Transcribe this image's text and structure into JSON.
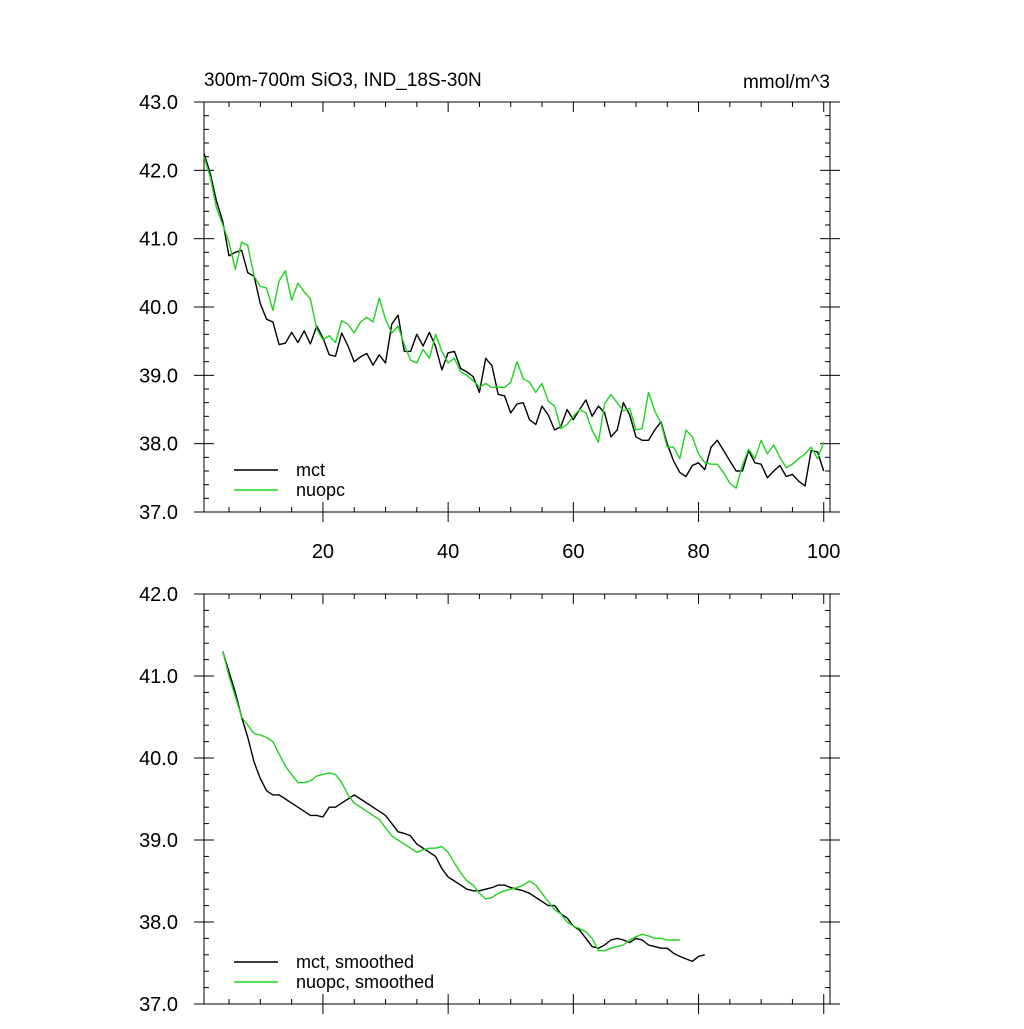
{
  "chart_data": [
    {
      "type": "line",
      "title": "300m-700m SiO3, IND_18S-30N",
      "units": "mmol/m^3",
      "xlabel": "",
      "ylabel": "",
      "xlim": [
        1,
        101
      ],
      "ylim": [
        37.0,
        43.0
      ],
      "x_ticks": [
        20,
        40,
        60,
        80,
        100
      ],
      "x_tick_labels": [
        "20",
        "40",
        "60",
        "80",
        "100"
      ],
      "y_ticks": [
        37.0,
        38.0,
        39.0,
        40.0,
        41.0,
        42.0,
        43.0
      ],
      "y_tick_labels": [
        "37.0",
        "38.0",
        "39.0",
        "40.0",
        "41.0",
        "42.0",
        "43.0"
      ],
      "legend_position": "bottom-left",
      "series": [
        {
          "name": "mct",
          "color": "#000000",
          "x_start": 1,
          "values": [
            42.25,
            41.95,
            41.55,
            41.25,
            40.75,
            40.8,
            40.83,
            40.5,
            40.45,
            40.05,
            39.82,
            39.78,
            39.45,
            39.47,
            39.63,
            39.48,
            39.65,
            39.46,
            39.72,
            39.55,
            39.3,
            39.28,
            39.62,
            39.43,
            39.2,
            39.27,
            39.32,
            39.15,
            39.3,
            39.18,
            39.75,
            39.88,
            39.35,
            39.35,
            39.6,
            39.43,
            39.63,
            39.42,
            39.08,
            39.33,
            39.35,
            39.1,
            39.05,
            38.98,
            38.75,
            39.25,
            39.14,
            38.72,
            38.7,
            38.45,
            38.58,
            38.6,
            38.35,
            38.28,
            38.55,
            38.42,
            38.2,
            38.25,
            38.5,
            38.35,
            38.5,
            38.64,
            38.4,
            38.55,
            38.45,
            38.1,
            38.2,
            38.6,
            38.42,
            38.1,
            38.05,
            38.05,
            38.2,
            38.32,
            38.0,
            37.75,
            37.58,
            37.52,
            37.68,
            37.72,
            37.62,
            37.95,
            38.05,
            37.9,
            37.75,
            37.6,
            37.6,
            37.9,
            37.72,
            37.7,
            37.5,
            37.6,
            37.68,
            37.52,
            37.55,
            37.45,
            37.38,
            37.9,
            37.88,
            37.6
          ]
        },
        {
          "name": "nuopc",
          "color": "#1ed31e",
          "x_start": 1,
          "values": [
            42.2,
            41.9,
            41.45,
            41.2,
            40.95,
            40.55,
            40.95,
            40.9,
            40.45,
            40.3,
            40.28,
            39.95,
            40.38,
            40.53,
            40.1,
            40.35,
            40.22,
            40.12,
            39.68,
            39.52,
            39.58,
            39.48,
            39.8,
            39.75,
            39.62,
            39.78,
            39.85,
            39.78,
            40.13,
            39.82,
            39.62,
            39.72,
            39.45,
            39.22,
            39.18,
            39.38,
            39.25,
            39.6,
            39.35,
            39.18,
            39.25,
            39.05,
            39.0,
            38.92,
            38.83,
            38.88,
            38.82,
            38.83,
            38.82,
            38.9,
            39.2,
            38.95,
            38.9,
            38.75,
            38.88,
            38.62,
            38.55,
            38.22,
            38.28,
            38.4,
            38.5,
            38.45,
            38.2,
            38.02,
            38.58,
            38.72,
            38.6,
            38.48,
            38.52,
            38.2,
            38.22,
            38.75,
            38.48,
            38.3,
            37.95,
            37.95,
            37.78,
            38.2,
            38.1,
            37.85,
            37.72,
            37.7,
            37.7,
            37.58,
            37.42,
            37.35,
            37.68,
            37.92,
            37.78,
            38.05,
            37.85,
            37.98,
            37.8,
            37.65,
            37.7,
            37.78,
            37.85,
            37.95,
            37.78,
            38.02
          ]
        }
      ]
    },
    {
      "type": "line",
      "title": "",
      "xlabel": "",
      "ylabel": "",
      "xlim": [
        1,
        101
      ],
      "ylim": [
        37.0,
        42.0
      ],
      "x_ticks": [
        20,
        40,
        60,
        80,
        100
      ],
      "y_ticks": [
        37.0,
        38.0,
        39.0,
        40.0,
        41.0,
        42.0
      ],
      "y_tick_labels": [
        "37.0",
        "38.0",
        "39.0",
        "40.0",
        "41.0",
        "42.0"
      ],
      "legend_position": "bottom-left",
      "series": [
        {
          "name": "mct, smoothed",
          "color": "#000000",
          "x_start": 4,
          "values": [
            41.3,
            41.05,
            40.8,
            40.5,
            40.25,
            39.95,
            39.75,
            39.6,
            39.55,
            39.55,
            39.5,
            39.45,
            39.4,
            39.35,
            39.3,
            39.3,
            39.28,
            39.4,
            39.4,
            39.45,
            39.5,
            39.55,
            39.5,
            39.45,
            39.4,
            39.35,
            39.3,
            39.2,
            39.1,
            39.08,
            39.05,
            38.95,
            38.9,
            38.85,
            38.8,
            38.65,
            38.55,
            38.5,
            38.45,
            38.4,
            38.38,
            38.38,
            38.4,
            38.42,
            38.45,
            38.45,
            38.42,
            38.4,
            38.38,
            38.35,
            38.3,
            38.25,
            38.2,
            38.2,
            38.1,
            38.05,
            37.95,
            37.9,
            37.8,
            37.7,
            37.68,
            37.72,
            37.78,
            37.8,
            37.78,
            37.75,
            37.8,
            37.78,
            37.72,
            37.7,
            37.68,
            37.68,
            37.62,
            37.58,
            37.55,
            37.52,
            37.58,
            37.6
          ]
        },
        {
          "name": "nuopc, smoothed",
          "color": "#1ed31e",
          "x_start": 4,
          "values": [
            41.3,
            41.0,
            40.75,
            40.5,
            40.4,
            40.3,
            40.28,
            40.25,
            40.2,
            40.05,
            39.9,
            39.8,
            39.7,
            39.7,
            39.72,
            39.78,
            39.8,
            39.82,
            39.8,
            39.7,
            39.55,
            39.45,
            39.4,
            39.35,
            39.3,
            39.25,
            39.15,
            39.05,
            39.0,
            38.95,
            38.9,
            38.85,
            38.88,
            38.9,
            38.9,
            38.92,
            38.85,
            38.72,
            38.6,
            38.5,
            38.45,
            38.35,
            38.28,
            38.3,
            38.35,
            38.38,
            38.4,
            38.42,
            38.45,
            38.5,
            38.45,
            38.35,
            38.25,
            38.15,
            38.1,
            38.0,
            37.95,
            37.92,
            37.88,
            37.8,
            37.65,
            37.65,
            37.68,
            37.7,
            37.72,
            37.78,
            37.82,
            37.85,
            37.83,
            37.8,
            37.8,
            37.78,
            37.78,
            37.78
          ]
        }
      ]
    }
  ]
}
